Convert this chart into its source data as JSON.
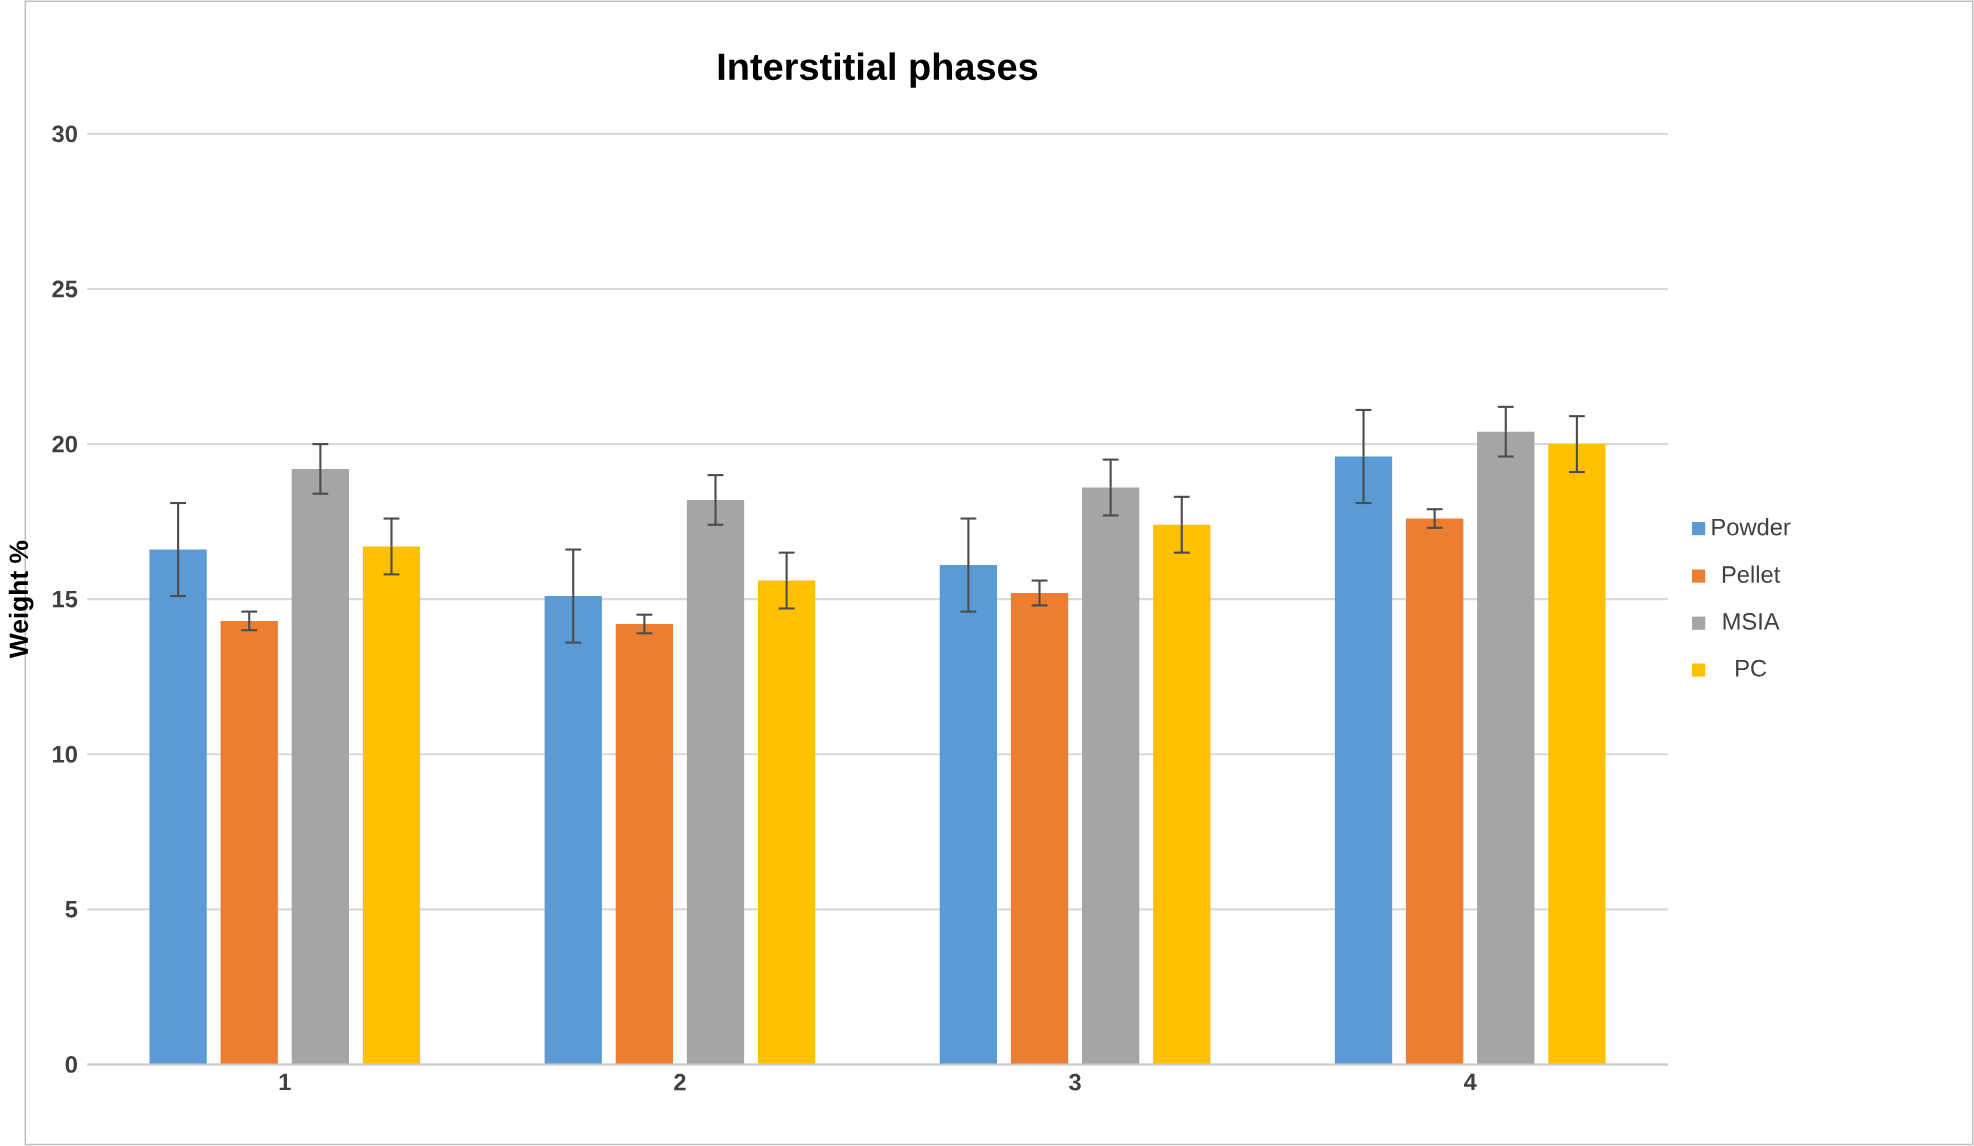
{
  "chart_data": {
    "type": "bar",
    "title": "Interstitial phases",
    "ylabel": "Weight %",
    "categories": [
      "1",
      "2",
      "3",
      "4"
    ],
    "series": [
      {
        "name": "Powder",
        "color": "#5b9bd5",
        "values": [
          16.6,
          15.1,
          16.1,
          19.6
        ],
        "errors": [
          1.5,
          1.5,
          1.5,
          1.5
        ]
      },
      {
        "name": "Pellet",
        "color": "#ed7d31",
        "values": [
          14.3,
          14.2,
          15.2,
          17.6
        ],
        "errors": [
          0.3,
          0.3,
          0.4,
          0.3
        ]
      },
      {
        "name": "MSIA",
        "color": "#a5a5a5",
        "values": [
          19.2,
          18.2,
          18.6,
          20.4
        ],
        "errors": [
          0.8,
          0.8,
          0.9,
          0.8
        ]
      },
      {
        "name": "PC",
        "color": "#ffc000",
        "values": [
          16.7,
          15.6,
          17.4,
          20.0
        ],
        "errors": [
          0.9,
          0.9,
          0.9,
          0.9
        ]
      }
    ],
    "ylim": [
      0,
      30
    ],
    "yticks": [
      0,
      5,
      10,
      15,
      20,
      25,
      30
    ],
    "grid": "y",
    "legend": "right"
  }
}
